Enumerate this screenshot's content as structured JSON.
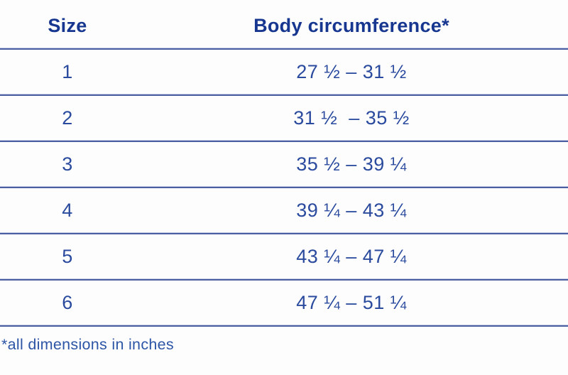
{
  "colors": {
    "background": "#fdfdfe",
    "header_text": "#16368f",
    "value_text": "#2a4a9d",
    "footnote_text": "#2d55a5",
    "divider_strong": "#4c5ea2",
    "divider_light": "#c9cfe4"
  },
  "table": {
    "headers": {
      "size": "Size",
      "circumference": "Body circumference*"
    },
    "rows": [
      {
        "size": "1",
        "range": "27 ½ – 31 ½"
      },
      {
        "size": "2",
        "range": "31 ½  – 35 ½"
      },
      {
        "size": "3",
        "range": "35 ½ – 39 ¼"
      },
      {
        "size": "4",
        "range": "39 ¼ – 43 ¼"
      },
      {
        "size": "5",
        "range": "43 ¼ – 47 ¼"
      },
      {
        "size": "6",
        "range": "47 ¼ – 51 ¼"
      }
    ],
    "footnote": "*all dimensions in inches"
  }
}
